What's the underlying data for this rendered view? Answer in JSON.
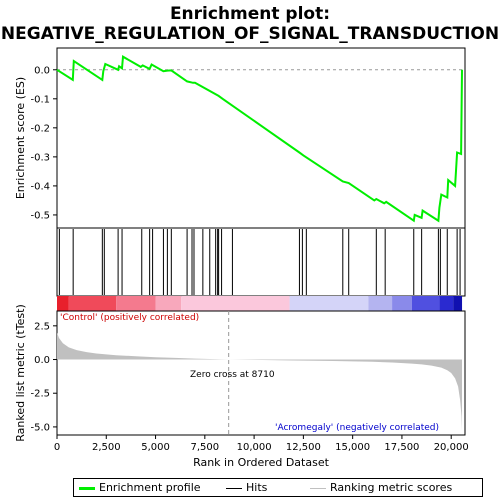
{
  "chart_data": {
    "type": "line",
    "title_line1": "Enrichment plot:",
    "title_line2": "NEGATIVE_REGULATION_OF_SIGNAL_TRANSDUCTION",
    "es_panel": {
      "ylabel": "Enrichment score (ES)",
      "yticks": [
        "0.0",
        "-0.1",
        "-0.2",
        "-0.3",
        "-0.4",
        "-0.5"
      ],
      "ytick_values": [
        0.0,
        -0.1,
        -0.2,
        -0.3,
        -0.4,
        -0.5
      ],
      "ylim": [
        -0.545,
        0.075
      ],
      "xlim": [
        0,
        20700
      ],
      "line_color": "#00ee00",
      "points": [
        [
          0,
          0.0
        ],
        [
          800,
          -0.035
        ],
        [
          850,
          0.03
        ],
        [
          2300,
          -0.035
        ],
        [
          2350,
          -0.005
        ],
        [
          2450,
          0.02
        ],
        [
          3100,
          0.0
        ],
        [
          3150,
          0.012
        ],
        [
          3300,
          0.005
        ],
        [
          3350,
          0.045
        ],
        [
          4250,
          0.01
        ],
        [
          4350,
          0.015
        ],
        [
          4700,
          0.003
        ],
        [
          4800,
          0.018
        ],
        [
          5400,
          -0.005
        ],
        [
          5600,
          -0.003
        ],
        [
          5800,
          -0.002
        ],
        [
          6600,
          -0.04
        ],
        [
          6900,
          -0.045
        ],
        [
          7000,
          -0.045
        ],
        [
          8200,
          -0.09
        ],
        [
          8400,
          -0.1
        ],
        [
          12300,
          -0.285
        ],
        [
          12500,
          -0.295
        ],
        [
          14500,
          -0.385
        ],
        [
          14800,
          -0.39
        ],
        [
          16100,
          -0.45
        ],
        [
          16200,
          -0.445
        ],
        [
          16600,
          -0.46
        ],
        [
          16700,
          -0.455
        ],
        [
          18100,
          -0.52
        ],
        [
          18150,
          -0.5
        ],
        [
          18500,
          -0.51
        ],
        [
          18550,
          -0.485
        ],
        [
          19350,
          -0.52
        ],
        [
          19400,
          -0.475
        ],
        [
          19500,
          -0.43
        ],
        [
          19800,
          -0.44
        ],
        [
          19850,
          -0.38
        ],
        [
          20200,
          -0.4
        ],
        [
          20300,
          -0.285
        ],
        [
          20500,
          -0.29
        ],
        [
          20550,
          0.0
        ]
      ]
    },
    "hits": [
      120,
      820,
      2300,
      2400,
      3100,
      3300,
      4300,
      4700,
      4850,
      5400,
      5600,
      5800,
      6600,
      6850,
      6950,
      7400,
      7750,
      8050,
      8150,
      8200,
      8350,
      8900,
      12300,
      12450,
      12650,
      14500,
      14800,
      16200,
      16650,
      18100,
      18500,
      19350,
      19450,
      19800,
      20300,
      20450
    ],
    "color_bar": {
      "segments": [
        {
          "from": 0,
          "to": 600,
          "color": "#e8202c"
        },
        {
          "from": 600,
          "to": 3000,
          "color": "#f04a5a"
        },
        {
          "from": 3000,
          "to": 5000,
          "color": "#f47a8e"
        },
        {
          "from": 5000,
          "to": 6300,
          "color": "#f8a8bc"
        },
        {
          "from": 6300,
          "to": 11800,
          "color": "#fbc8dc"
        },
        {
          "from": 11800,
          "to": 15800,
          "color": "#d4d4f8"
        },
        {
          "from": 15800,
          "to": 17000,
          "color": "#b4b4f0"
        },
        {
          "from": 17000,
          "to": 18000,
          "color": "#8a8aea"
        },
        {
          "from": 18000,
          "to": 19400,
          "color": "#5050e0"
        },
        {
          "from": 19400,
          "to": 20100,
          "color": "#2a2ad0"
        },
        {
          "from": 20100,
          "to": 20550,
          "color": "#1010b0"
        }
      ]
    },
    "metric_panel": {
      "ylabel": "Ranked list metric (tTest)",
      "yticks": [
        "2.5",
        "0.0",
        "-2.5",
        "-5.0"
      ],
      "ytick_values": [
        2.5,
        0.0,
        -2.5,
        -5.0
      ],
      "ylim": [
        -5.6,
        3.6
      ],
      "fill_color": "#c0c0c0",
      "points": [
        [
          0,
          2.0
        ],
        [
          100,
          1.6
        ],
        [
          300,
          1.2
        ],
        [
          600,
          0.9
        ],
        [
          1000,
          0.7
        ],
        [
          1500,
          0.55
        ],
        [
          2000,
          0.45
        ],
        [
          3000,
          0.32
        ],
        [
          4000,
          0.24
        ],
        [
          5000,
          0.17
        ],
        [
          6000,
          0.12
        ],
        [
          7000,
          0.07
        ],
        [
          8000,
          0.03
        ],
        [
          8710,
          0.0
        ],
        [
          10000,
          -0.03
        ],
        [
          12000,
          -0.07
        ],
        [
          14000,
          -0.11
        ],
        [
          16000,
          -0.17
        ],
        [
          17000,
          -0.22
        ],
        [
          18000,
          -0.3
        ],
        [
          18500,
          -0.36
        ],
        [
          19000,
          -0.45
        ],
        [
          19500,
          -0.6
        ],
        [
          19800,
          -0.8
        ],
        [
          20000,
          -1.0
        ],
        [
          20200,
          -1.4
        ],
        [
          20350,
          -2.0
        ],
        [
          20450,
          -3.0
        ],
        [
          20520,
          -4.2
        ],
        [
          20550,
          -5.3
        ]
      ],
      "zero_cross_x": 8710
    },
    "xlabel": "Rank in Ordered Dataset",
    "xticks": [
      "0",
      "2,500",
      "5,000",
      "7,500",
      "10,000",
      "12,500",
      "15,000",
      "17,500",
      "20,000"
    ],
    "xtick_values": [
      0,
      2500,
      5000,
      7500,
      10000,
      12500,
      15000,
      17500,
      20000
    ],
    "annotations": {
      "positive": "'Control' (positively correlated)",
      "negative": "'Acromegaly' (negatively correlated)",
      "zero_cross": "Zero cross at 8710",
      "positive_color": "#cc0000",
      "negative_color": "#0000cc"
    },
    "legend": {
      "items": [
        {
          "label": "Enrichment profile",
          "color": "#00ee00",
          "style": "thick"
        },
        {
          "label": "Hits",
          "color": "#000000",
          "style": "thin"
        },
        {
          "label": "Ranking metric scores",
          "color": "#c0c0c0",
          "style": "thin"
        }
      ]
    }
  }
}
